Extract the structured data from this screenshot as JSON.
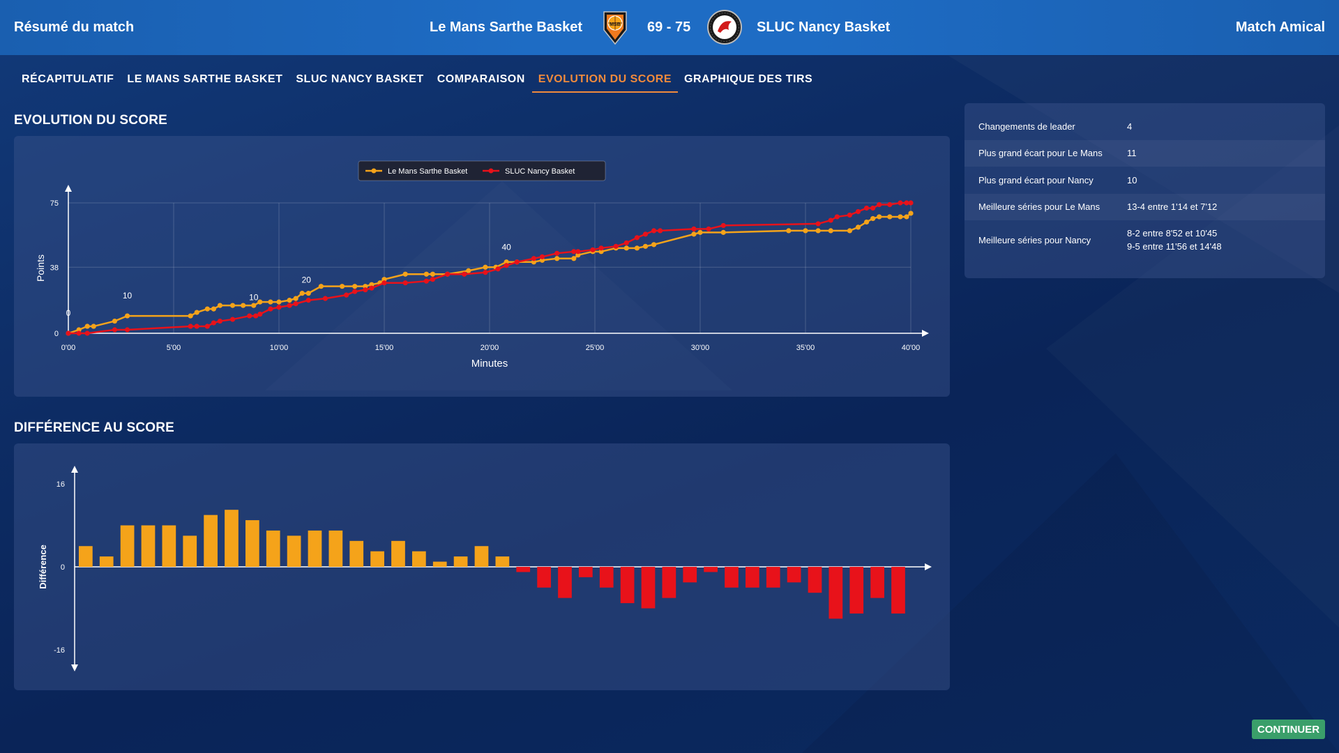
{
  "header": {
    "title": "Résumé du match",
    "home_team": "Le Mans Sarthe Basket",
    "away_team": "SLUC Nancy Basket",
    "score": "69 - 75",
    "match_type": "Match Amical",
    "home_logo_text": "MSB"
  },
  "tabs": [
    {
      "label": "RÉCAPITULATIF",
      "active": false
    },
    {
      "label": "LE MANS SARTHE BASKET",
      "active": false
    },
    {
      "label": "SLUC NANCY BASKET",
      "active": false
    },
    {
      "label": "COMPARAISON",
      "active": false
    },
    {
      "label": "EVOLUTION DU SCORE",
      "active": true
    },
    {
      "label": "GRAPHIQUE DES TIRS",
      "active": false
    }
  ],
  "sections": {
    "evolution_title": "EVOLUTION DU SCORE",
    "difference_title": "DIFFÉRENCE AU SCORE"
  },
  "stats": [
    {
      "label": "Changements de leader",
      "value": "4"
    },
    {
      "label": "Plus grand écart pour Le Mans",
      "value": "11"
    },
    {
      "label": "Plus grand écart pour Nancy",
      "value": "10"
    },
    {
      "label": "Meilleure séries pour Le Mans",
      "value": "13-4 entre 1'14 et 7'12"
    },
    {
      "label": "Meilleure séries pour Nancy",
      "value": "8-2 entre 8'52 et 10'45",
      "value2": "9-5 entre 11'56 et 14'48"
    }
  ],
  "buttons": {
    "continue": "CONTINUER"
  },
  "colors": {
    "le_mans": "#f5a31a",
    "nancy": "#e8121a",
    "active_tab": "#f08a3c",
    "continue": "#3a9f6a"
  },
  "chart_data": [
    {
      "type": "line",
      "xlabel": "Minutes",
      "ylabel": "Points",
      "xlim": [
        0,
        40
      ],
      "ylim": [
        0,
        75
      ],
      "x_ticks": [
        "0'00",
        "5'00",
        "10'00",
        "15'00",
        "20'00",
        "25'00",
        "30'00",
        "35'00",
        "40'00"
      ],
      "y_ticks": [
        "0",
        "38",
        "75"
      ],
      "grid": true,
      "legend": "top-center",
      "annotations": [
        {
          "text": "0",
          "x": 0,
          "y": 10
        },
        {
          "text": "10",
          "x": 2.8,
          "y": 20
        },
        {
          "text": "10",
          "x": 8.8,
          "y": 19
        },
        {
          "text": "20",
          "x": 11.3,
          "y": 29
        },
        {
          "text": "40",
          "x": 20.8,
          "y": 48
        }
      ],
      "series": [
        {
          "name": "Le Mans Sarthe Basket",
          "points": [
            [
              0,
              0
            ],
            [
              0.5,
              2
            ],
            [
              0.9,
              4
            ],
            [
              1.2,
              4
            ],
            [
              2.2,
              7
            ],
            [
              2.8,
              10
            ],
            [
              5.8,
              10
            ],
            [
              6.1,
              12
            ],
            [
              6.6,
              14
            ],
            [
              6.9,
              14
            ],
            [
              7.2,
              16
            ],
            [
              7.8,
              16
            ],
            [
              8.3,
              16
            ],
            [
              8.8,
              16
            ],
            [
              9.1,
              18
            ],
            [
              9.6,
              18
            ],
            [
              10.0,
              18
            ],
            [
              10.5,
              19
            ],
            [
              10.8,
              20
            ],
            [
              11.1,
              23
            ],
            [
              11.4,
              23
            ],
            [
              12.0,
              27
            ],
            [
              13.0,
              27
            ],
            [
              13.6,
              27
            ],
            [
              14.1,
              27
            ],
            [
              14.4,
              28
            ],
            [
              14.8,
              29
            ],
            [
              15.0,
              31
            ],
            [
              16.0,
              34
            ],
            [
              17.0,
              34
            ],
            [
              17.3,
              34
            ],
            [
              18.0,
              34
            ],
            [
              19.0,
              36
            ],
            [
              19.8,
              38
            ],
            [
              20.3,
              38
            ],
            [
              20.8,
              41
            ],
            [
              21.3,
              41
            ],
            [
              22.1,
              41
            ],
            [
              22.5,
              42
            ],
            [
              23.2,
              43
            ],
            [
              24.0,
              43
            ],
            [
              24.2,
              45
            ],
            [
              24.9,
              47
            ],
            [
              25.3,
              47
            ],
            [
              26.0,
              49
            ],
            [
              26.5,
              49
            ],
            [
              27.0,
              49
            ],
            [
              27.4,
              50
            ],
            [
              27.8,
              51
            ],
            [
              29.7,
              57
            ],
            [
              30.0,
              58
            ],
            [
              31.1,
              58
            ],
            [
              34.2,
              59
            ],
            [
              35.0,
              59
            ],
            [
              35.6,
              59
            ],
            [
              36.2,
              59
            ],
            [
              37.1,
              59
            ],
            [
              37.5,
              61
            ],
            [
              37.9,
              64
            ],
            [
              38.2,
              66
            ],
            [
              38.5,
              67
            ],
            [
              39.0,
              67
            ],
            [
              39.5,
              67
            ],
            [
              39.8,
              67
            ],
            [
              40.0,
              69
            ]
          ]
        },
        {
          "name": "SLUC Nancy Basket",
          "points": [
            [
              0,
              0
            ],
            [
              0.5,
              0
            ],
            [
              0.9,
              0
            ],
            [
              2.2,
              2
            ],
            [
              2.8,
              2
            ],
            [
              5.8,
              4
            ],
            [
              6.1,
              4
            ],
            [
              6.6,
              4
            ],
            [
              6.9,
              6
            ],
            [
              7.2,
              7
            ],
            [
              7.8,
              8
            ],
            [
              8.6,
              10
            ],
            [
              8.9,
              10
            ],
            [
              9.1,
              11
            ],
            [
              9.6,
              14
            ],
            [
              10.0,
              15
            ],
            [
              10.5,
              16
            ],
            [
              10.8,
              17
            ],
            [
              11.4,
              19
            ],
            [
              12.2,
              20
            ],
            [
              13.2,
              22
            ],
            [
              13.6,
              24
            ],
            [
              14.1,
              25
            ],
            [
              14.4,
              26
            ],
            [
              15.0,
              29
            ],
            [
              16.0,
              29
            ],
            [
              17.0,
              30
            ],
            [
              17.3,
              31
            ],
            [
              18.0,
              34
            ],
            [
              18.8,
              34
            ],
            [
              19.8,
              35
            ],
            [
              20.4,
              37
            ],
            [
              20.8,
              39
            ],
            [
              21.3,
              41
            ],
            [
              22.1,
              43
            ],
            [
              22.5,
              44
            ],
            [
              23.2,
              46
            ],
            [
              24.0,
              47
            ],
            [
              24.2,
              47
            ],
            [
              24.9,
              48
            ],
            [
              25.3,
              49
            ],
            [
              26.0,
              50
            ],
            [
              26.5,
              52
            ],
            [
              27.0,
              55
            ],
            [
              27.4,
              57
            ],
            [
              27.8,
              59
            ],
            [
              28.1,
              59
            ],
            [
              29.7,
              60
            ],
            [
              30.4,
              60
            ],
            [
              31.1,
              62
            ],
            [
              35.6,
              63
            ],
            [
              36.2,
              65
            ],
            [
              36.5,
              67
            ],
            [
              37.1,
              68
            ],
            [
              37.5,
              70
            ],
            [
              37.9,
              72
            ],
            [
              38.2,
              72
            ],
            [
              38.5,
              74
            ],
            [
              39.0,
              74
            ],
            [
              39.5,
              75
            ],
            [
              39.8,
              75
            ],
            [
              40.0,
              75
            ]
          ]
        }
      ]
    },
    {
      "type": "bar",
      "ylabel": "Différence",
      "ylim": [
        -16,
        16
      ],
      "y_ticks": [
        "16",
        "0",
        "-16"
      ],
      "positive_series": "Le Mans Sarthe Basket",
      "negative_series": "SLUC Nancy Basket",
      "values": [
        4,
        2,
        8,
        8,
        8,
        6,
        10,
        11,
        9,
        7,
        6,
        7,
        7,
        5,
        3,
        5,
        3,
        1,
        2,
        4,
        2,
        -1,
        -4,
        -6,
        -2,
        -4,
        -7,
        -8,
        -6,
        -3,
        -1,
        -4,
        -4,
        -4,
        -3,
        -5,
        -10,
        -9,
        -6,
        -9
      ]
    }
  ]
}
